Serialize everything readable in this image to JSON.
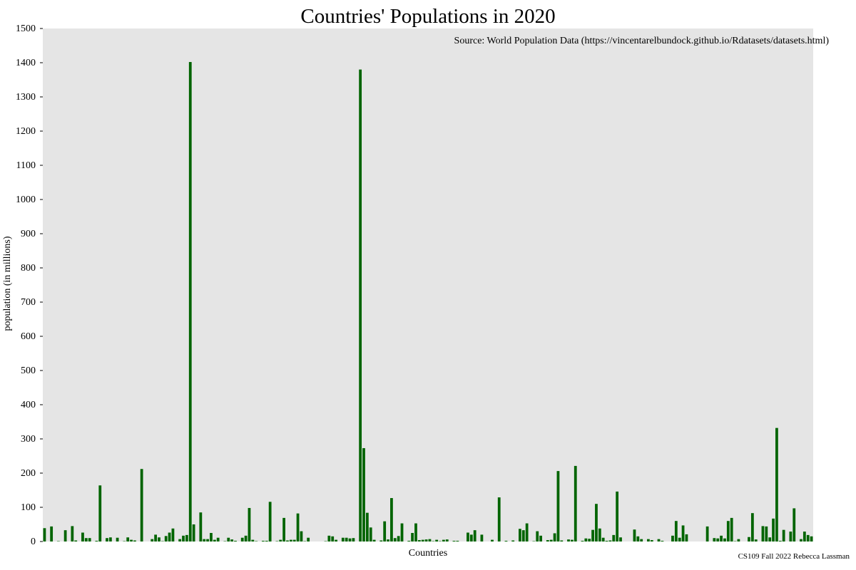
{
  "colors": {
    "bar": "#006400",
    "panel": "#e5e5e5",
    "background": "#ffffff",
    "text": "#000000"
  },
  "chart_data": {
    "type": "bar",
    "title": "Countries' Populations in 2020",
    "annotation": "Source: World Population Data (https://vincentarelbundock.github.io/Rdatasets/datasets.html)",
    "credit": "CS109 Fall 2022 Rebecca Lassman",
    "xlabel": "Countries",
    "ylabel": "population (in millions)",
    "ylim": [
      0,
      1500
    ],
    "yticks": [
      "0",
      "100",
      "200",
      "300",
      "400",
      "500",
      "600",
      "700",
      "800",
      "900",
      "1000",
      "1100",
      "1200",
      "1300",
      "1400",
      "1500"
    ],
    "grid": false,
    "values": [
      39,
      0,
      44,
      0,
      1,
      0,
      33,
      0,
      45,
      3,
      0,
      26,
      10,
      10,
      0,
      2,
      164,
      0,
      10,
      12,
      0,
      11,
      0,
      1,
      12,
      5,
      3,
      0,
      212,
      0,
      0,
      7,
      20,
      12,
      1,
      16,
      26,
      38,
      0,
      7,
      17,
      19,
      1402,
      50,
      0,
      85,
      7,
      7,
      25,
      5,
      11,
      0,
      1,
      11,
      6,
      2,
      0,
      11,
      17,
      98,
      5,
      1,
      0,
      2,
      2,
      116,
      0,
      1,
      5,
      69,
      3,
      5,
      5,
      82,
      30,
      1,
      11,
      0,
      0,
      0,
      0,
      1,
      17,
      15,
      5,
      0,
      11,
      11,
      9,
      10,
      0,
      1380,
      273,
      84,
      41,
      5,
      0,
      3,
      59,
      6,
      127,
      10,
      16,
      53,
      0,
      2,
      25,
      53,
      4,
      5,
      6,
      7,
      1,
      5,
      1,
      5,
      6,
      0,
      2,
      2,
      0,
      0,
      26,
      20,
      33,
      0,
      20,
      0,
      0,
      5,
      0,
      129,
      0,
      2,
      0,
      3,
      0,
      37,
      33,
      53,
      0,
      1,
      30,
      17,
      0,
      4,
      5,
      24,
      206,
      3,
      0,
      6,
      5,
      221,
      0,
      2,
      9,
      8,
      34,
      110,
      38,
      11,
      2,
      3,
      19,
      146,
      12,
      0,
      0,
      0,
      35,
      15,
      7,
      0,
      7,
      4,
      0,
      7,
      2,
      0,
      0,
      17,
      60,
      11,
      47,
      21,
      0,
      0,
      0,
      0,
      0,
      44,
      0,
      10,
      9,
      17,
      9,
      60,
      69,
      1,
      7,
      0,
      0,
      13,
      83,
      6,
      0,
      45,
      44,
      12,
      67,
      332,
      2,
      34,
      0,
      29,
      97,
      0,
      7,
      29,
      19,
      15
    ]
  }
}
